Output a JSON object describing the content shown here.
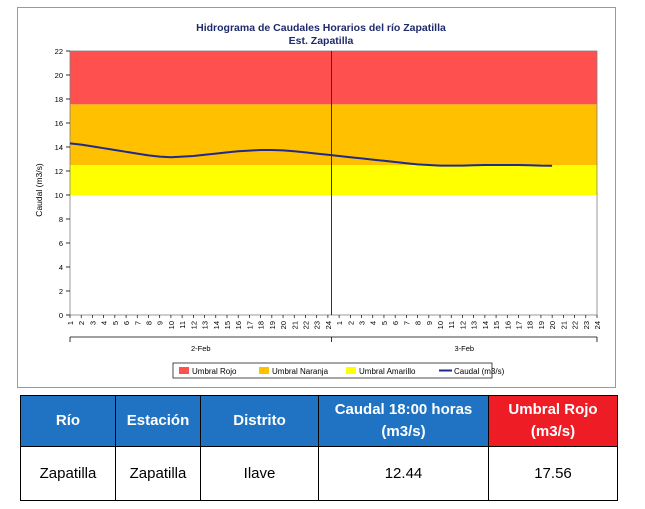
{
  "chart_data": {
    "type": "line",
    "title": "Hidrograma de Caudales Horarios del río Zapatilla",
    "subtitle": "Est. Zapatilla",
    "ylabel": "Caudal  (m3/s)",
    "ylim": [
      0,
      22
    ],
    "yticks": [
      "0",
      "2",
      "4",
      "6",
      "8",
      "10",
      "12",
      "14",
      "16",
      "18",
      "20",
      "22"
    ],
    "hour_labels": [
      "1",
      "2",
      "3",
      "4",
      "5",
      "6",
      "7",
      "8",
      "9",
      "10",
      "11",
      "12",
      "13",
      "14",
      "15",
      "16",
      "17",
      "18",
      "19",
      "20",
      "21",
      "22",
      "23",
      "24",
      "1",
      "2",
      "3",
      "4",
      "5",
      "6",
      "7",
      "8",
      "9",
      "10",
      "11",
      "12",
      "13",
      "14",
      "15",
      "16",
      "17",
      "18",
      "19",
      "20",
      "21",
      "22",
      "23",
      "24"
    ],
    "date_labels": [
      "2-Feb",
      "3-Feb"
    ],
    "bands": [
      {
        "name": "Umbral Amarillo",
        "from": 10,
        "to": 12.5,
        "color": "#ffff00"
      },
      {
        "name": "Umbral Naranja",
        "from": 12.5,
        "to": 17.56,
        "color": "#ffc000"
      },
      {
        "name": "Umbral Rojo",
        "from": 17.56,
        "to": 22,
        "color": "#ff5050"
      }
    ],
    "series": [
      {
        "name": "Caudal (m3/s)",
        "color": "#1f2a8a",
        "values": [
          14.3,
          14.2,
          14.05,
          13.9,
          13.75,
          13.6,
          13.45,
          13.3,
          13.2,
          13.15,
          13.2,
          13.25,
          13.35,
          13.45,
          13.55,
          13.65,
          13.7,
          13.75,
          13.75,
          13.72,
          13.65,
          13.55,
          13.45,
          13.35,
          13.25,
          13.15,
          13.05,
          12.95,
          12.85,
          12.75,
          12.65,
          12.55,
          12.5,
          12.45,
          12.45,
          12.45,
          12.48,
          12.5,
          12.5,
          12.5,
          12.5,
          12.48,
          12.45,
          12.44
        ]
      }
    ],
    "legend": [
      "Umbral Rojo",
      "Umbral Naranja",
      "Umbral Amarillo",
      "Caudal (m3/s)"
    ],
    "legend_position": "bottom",
    "grid": false
  },
  "colors": {
    "rojo": "#ff5050",
    "naranja": "#ffc000",
    "amarillo": "#ffff00",
    "caudal": "#1f2a8a",
    "header_blue": "#1f73c2",
    "header_red": "#ee1c25"
  },
  "table": {
    "headers": [
      "Río",
      "Estación",
      "Distrito",
      "Caudal 18:00 horas (m3/s)",
      "Umbral Rojo (m3/s)"
    ],
    "row": [
      "Zapatilla",
      "Zapatilla",
      "Ilave",
      "12.44",
      "17.56"
    ]
  }
}
